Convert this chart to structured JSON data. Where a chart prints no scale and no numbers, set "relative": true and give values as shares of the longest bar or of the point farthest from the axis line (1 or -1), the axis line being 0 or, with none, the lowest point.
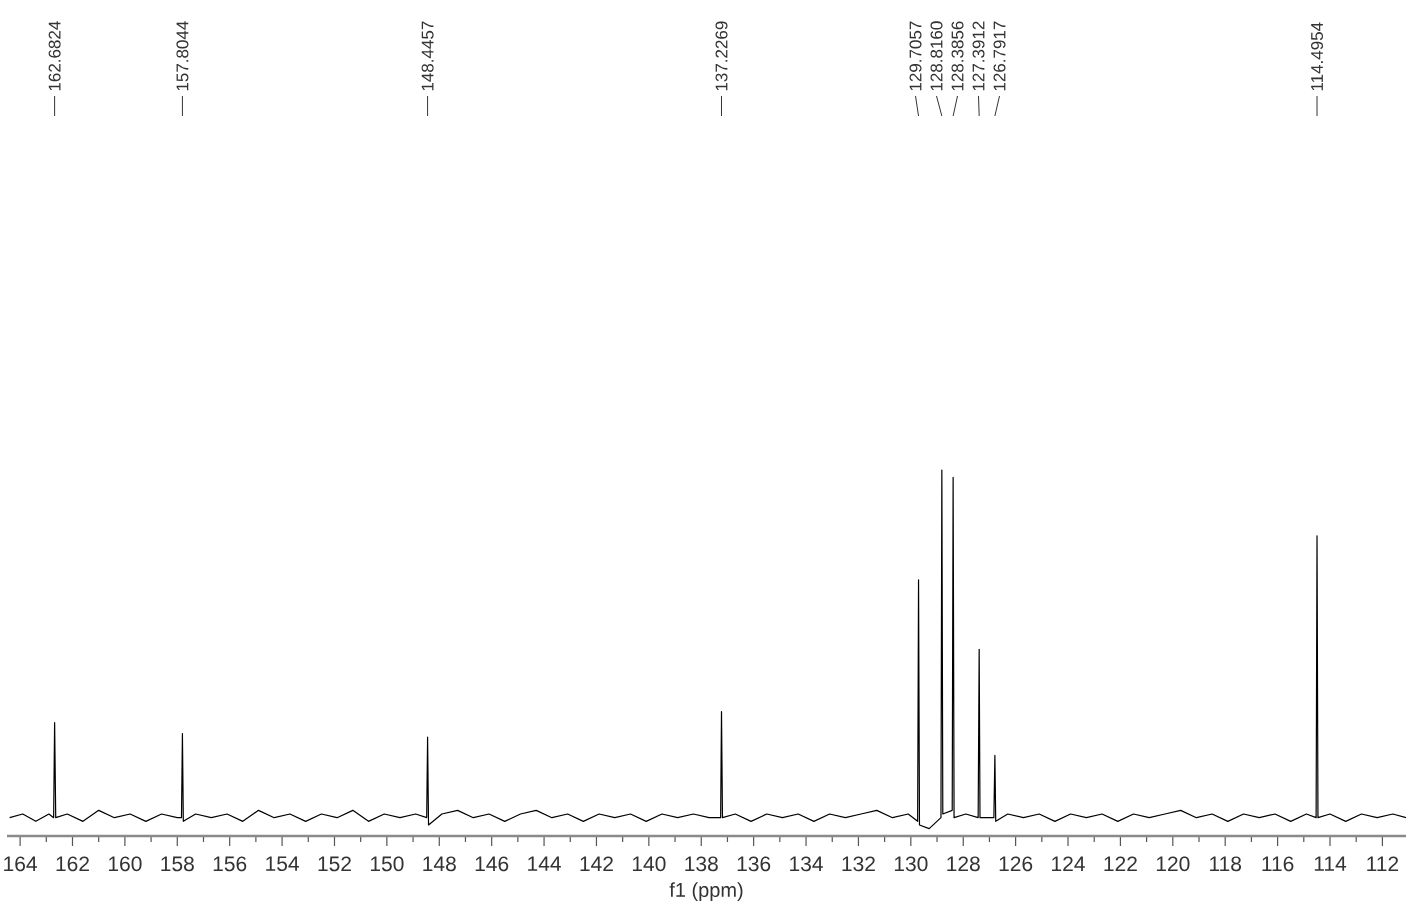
{
  "chart_data": {
    "type": "line",
    "relative": true,
    "xlabel": "f1 (ppm)",
    "color": "#000000",
    "xlim": [
      164.5,
      111.1
    ],
    "xticks": [
      164,
      {
        "value": 163,
        "label": null
      },
      162,
      {
        "value": 161,
        "label": null
      },
      160,
      {
        "value": 159,
        "label": null
      },
      158,
      {
        "value": 157,
        "label": null
      },
      156,
      {
        "value": 155,
        "label": null
      },
      154,
      {
        "value": 153,
        "label": null
      },
      152,
      {
        "value": 151,
        "label": null
      },
      150,
      {
        "value": 149,
        "label": null
      },
      148,
      {
        "value": 147,
        "label": null
      },
      146,
      {
        "value": 145,
        "label": null
      },
      144,
      {
        "value": 143,
        "label": null
      },
      142,
      {
        "value": 141,
        "label": null
      },
      140,
      {
        "value": 139,
        "label": null
      },
      138,
      {
        "value": 137,
        "label": null
      },
      136,
      {
        "value": 135,
        "label": null
      },
      134,
      {
        "value": 133,
        "label": null
      },
      132,
      {
        "value": 131,
        "label": null
      },
      130,
      {
        "value": 129,
        "label": null
      },
      128,
      {
        "value": 127,
        "label": null
      },
      126,
      {
        "value": 125,
        "label": null
      },
      124,
      {
        "value": 123,
        "label": null
      },
      122,
      {
        "value": 121,
        "label": null
      },
      120,
      {
        "value": 119,
        "label": null
      },
      118,
      {
        "value": 117,
        "label": null
      },
      116,
      {
        "value": 115,
        "label": null
      },
      114,
      {
        "value": 113,
        "label": null
      },
      112
    ],
    "x": [
      164.4,
      163.9,
      163.4,
      162.9,
      162.72,
      162.6824,
      162.64,
      162.2,
      161.6,
      161.0,
      160.4,
      159.8,
      159.2,
      158.6,
      158.0,
      157.84,
      157.8044,
      157.77,
      157.3,
      156.7,
      156.1,
      155.5,
      154.9,
      154.3,
      153.7,
      153.1,
      152.5,
      151.9,
      151.3,
      150.7,
      150.1,
      149.5,
      148.9,
      148.48,
      148.4457,
      148.41,
      147.9,
      147.3,
      146.7,
      146.1,
      145.5,
      144.9,
      144.3,
      143.7,
      143.1,
      142.5,
      141.9,
      141.3,
      140.7,
      140.1,
      139.5,
      138.9,
      138.3,
      137.7,
      137.26,
      137.2269,
      137.19,
      136.7,
      136.1,
      135.5,
      134.9,
      134.3,
      133.7,
      133.1,
      132.5,
      131.9,
      131.3,
      130.7,
      130.1,
      129.74,
      129.7057,
      129.67,
      129.3,
      128.85,
      128.816,
      128.78,
      128.42,
      128.3856,
      128.35,
      127.9,
      127.43,
      127.3912,
      127.36,
      126.83,
      126.7917,
      126.76,
      126.3,
      125.7,
      125.1,
      124.5,
      123.9,
      123.3,
      122.7,
      122.1,
      121.5,
      120.9,
      120.3,
      119.7,
      119.1,
      118.5,
      117.9,
      117.3,
      116.7,
      116.1,
      115.5,
      114.9,
      114.53,
      114.4954,
      114.46,
      114.0,
      113.4,
      112.8,
      112.2,
      111.6,
      111.1
    ],
    "values": [
      0.05,
      0.06,
      0.04,
      0.06,
      0.05,
      0.31,
      0.05,
      0.06,
      0.04,
      0.07,
      0.05,
      0.06,
      0.04,
      0.06,
      0.05,
      0.05,
      0.28,
      0.04,
      0.06,
      0.05,
      0.06,
      0.04,
      0.07,
      0.05,
      0.06,
      0.04,
      0.06,
      0.05,
      0.07,
      0.04,
      0.06,
      0.05,
      0.06,
      0.05,
      0.27,
      0.03,
      0.06,
      0.07,
      0.05,
      0.06,
      0.04,
      0.06,
      0.07,
      0.05,
      0.06,
      0.04,
      0.06,
      0.05,
      0.06,
      0.04,
      0.06,
      0.05,
      0.06,
      0.05,
      0.05,
      0.34,
      0.05,
      0.06,
      0.04,
      0.06,
      0.05,
      0.06,
      0.04,
      0.06,
      0.05,
      0.06,
      0.07,
      0.05,
      0.06,
      0.04,
      0.7,
      0.03,
      0.02,
      0.05,
      1,
      0.06,
      0.07,
      0.98,
      0.05,
      0.06,
      0.05,
      0.51,
      0.05,
      0.05,
      0.22,
      0.04,
      0.06,
      0.05,
      0.06,
      0.04,
      0.06,
      0.05,
      0.06,
      0.04,
      0.06,
      0.05,
      0.06,
      0.07,
      0.05,
      0.06,
      0.04,
      0.06,
      0.05,
      0.06,
      0.04,
      0.06,
      0.05,
      0.82,
      0.05,
      0.06,
      0.04,
      0.06,
      0.05,
      0.06,
      0.05
    ],
    "annotations": [
      {
        "text": "162.6824",
        "x": 162.6824
      },
      {
        "text": "157.8044",
        "x": 157.8044
      },
      {
        "text": "148.4457",
        "x": 148.4457
      },
      {
        "text": "137.2269",
        "x": 137.2269
      },
      {
        "text": "129.7057",
        "x": 129.7057
      },
      {
        "text": "128.8160",
        "x": 128.816
      },
      {
        "text": "128.3856",
        "x": 128.3856
      },
      {
        "text": "127.3912",
        "x": 127.3912
      },
      {
        "text": "126.7917",
        "x": 126.7917
      },
      {
        "text": "114.4954",
        "x": 114.4954
      }
    ]
  }
}
